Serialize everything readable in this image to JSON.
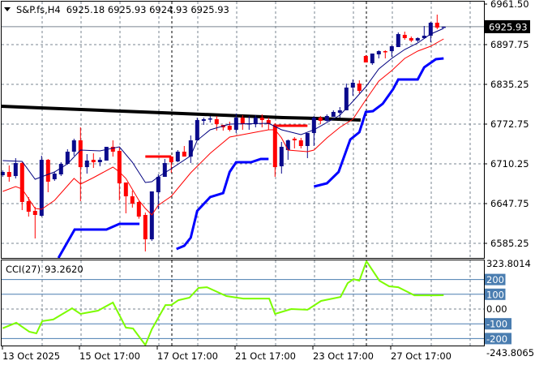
{
  "header": {
    "symbol": "S&P.fs,H4",
    "ohlc": "6925.18 6925.93 6924.93 6925.93"
  },
  "cci_label": {
    "name": "CCI(27)",
    "value": "93.2620"
  },
  "colors": {
    "up": "#0A0A8C",
    "down": "#FF0000",
    "ma_fast": "#000080",
    "ma_slow": "#FF0000",
    "trail": "#0000FF",
    "long_ma": "#000000",
    "cci": "#7CFC00",
    "level": "#4A7DB0",
    "grid": "#7A8591"
  },
  "chart_data": [
    {
      "type": "candlestick",
      "title": "S&P.fs,H4",
      "price_axis_ticks": [
        "6961.50",
        "6897.75",
        "6835.25",
        "6772.75",
        "6710.25",
        "6647.75",
        "6585.25"
      ],
      "ylim": [
        6563,
        6966
      ],
      "current_price": 6925.93,
      "current_price_label": "6925.93",
      "time_labels": [
        "13 Oct 2025",
        "15 Oct 17:00",
        "17 Oct 17:00",
        "21 Oct 17:00",
        "23 Oct 17:00",
        "27 Oct 17:00"
      ],
      "candles_ohlc": [
        [
          6692.4,
          6700.0,
          6689.8,
          6697.5
        ],
        [
          6697.5,
          6707.7,
          6682.2,
          6689.8
        ],
        [
          6691.1,
          6719.2,
          6687.3,
          6711.5
        ],
        [
          6711.5,
          6712.8,
          6637.5,
          6650.3
        ],
        [
          6651.6,
          6657.9,
          6627.3,
          6635.0
        ],
        [
          6636.3,
          6642.6,
          6592.9,
          6629.9
        ],
        [
          6628.6,
          6723.0,
          6627.3,
          6716.6
        ],
        [
          6716.6,
          6717.9,
          6665.6,
          6682.2
        ],
        [
          6686.0,
          6697.5,
          6683.5,
          6694.9
        ],
        [
          6693.7,
          6712.8,
          6691.1,
          6710.2
        ],
        [
          6710.2,
          6733.2,
          6709.0,
          6729.4
        ],
        [
          6729.4,
          6749.8,
          6723.0,
          6747.2
        ],
        [
          6747.2,
          6767.6,
          6651.6,
          6705.1
        ],
        [
          6705.1,
          6725.6,
          6694.9,
          6715.4
        ],
        [
          6716.6,
          6726.8,
          6703.9,
          6712.8
        ],
        [
          6712.8,
          6720.5,
          6706.4,
          6716.6
        ],
        [
          6715.4,
          6737.0,
          6715.4,
          6737.0
        ],
        [
          6737.0,
          6747.2,
          6721.7,
          6729.4
        ],
        [
          6730.7,
          6735.8,
          6652.8,
          6679.6
        ],
        [
          6680.9,
          6680.9,
          6632.4,
          6659.2
        ],
        [
          6659.2,
          6668.2,
          6641.4,
          6647.7
        ],
        [
          6650.3,
          6651.6,
          6624.0,
          6627.3
        ],
        [
          6629.9,
          6633.7,
          6572.5,
          6591.6
        ],
        [
          6591.6,
          6666.9,
          6589.0,
          6666.9
        ],
        [
          6665.6,
          6693.7,
          6638.8,
          6689.8
        ],
        [
          6689.8,
          6717.9,
          6689.8,
          6711.5
        ],
        [
          6721.7,
          6721.7,
          6696.2,
          6712.8
        ],
        [
          6714.1,
          6731.9,
          6712.8,
          6729.4
        ],
        [
          6729.4,
          6738.3,
          6721.7,
          6721.7
        ],
        [
          6721.7,
          6754.9,
          6711.5,
          6747.2
        ],
        [
          6747.2,
          6782.9,
          6747.2,
          6779.1
        ],
        [
          6777.8,
          6782.9,
          6771.5,
          6780.4
        ],
        [
          6780.4,
          6785.5,
          6775.3,
          6781.7
        ],
        [
          6780.4,
          6785.5,
          6762.5,
          6772.7
        ],
        [
          6771.5,
          6771.5,
          6762.5,
          6767.6
        ],
        [
          6770.2,
          6776.6,
          6761.3,
          6763.8
        ],
        [
          6763.8,
          6789.3,
          6758.7,
          6782.9
        ],
        [
          6782.9,
          6786.8,
          6763.8,
          6772.7
        ],
        [
          6772.7,
          6785.5,
          6763.8,
          6774.0
        ],
        [
          6772.7,
          6786.8,
          6767.6,
          6782.9
        ],
        [
          6782.9,
          6788.1,
          6767.6,
          6779.1
        ],
        [
          6779.1,
          6782.9,
          6763.8,
          6772.7
        ],
        [
          6770.2,
          6774.0,
          6689.8,
          6705.1
        ],
        [
          6706.4,
          6744.7,
          6694.9,
          6737.0
        ],
        [
          6731.9,
          6748.5,
          6716.6,
          6747.2
        ],
        [
          6749.8,
          6752.3,
          6734.5,
          6747.2
        ],
        [
          6747.2,
          6751.1,
          6734.5,
          6738.3
        ],
        [
          6738.3,
          6758.7,
          6719.2,
          6758.7
        ],
        [
          6758.7,
          6785.5,
          6738.3,
          6782.9
        ],
        [
          6782.9,
          6785.5,
          6772.7,
          6777.8
        ],
        [
          6777.8,
          6788.1,
          6776.6,
          6785.5
        ],
        [
          6784.2,
          6794.4,
          6784.2,
          6791.9
        ],
        [
          6790.6,
          6799.5,
          6782.9,
          6794.4
        ],
        [
          6794.4,
          6836.5,
          6794.4,
          6830.2
        ],
        [
          6830.2,
          6842.9,
          6817.4,
          6837.8
        ],
        [
          6836.5,
          6841.6,
          6821.2,
          6825.0
        ],
        [
          6879.9,
          6881.1,
          6869.7,
          6869.7
        ],
        [
          6868.4,
          6883.7,
          6865.9,
          6883.7
        ],
        [
          6882.4,
          6888.8,
          6876.1,
          6887.5
        ],
        [
          6887.5,
          6888.8,
          6876.1,
          6886.3
        ],
        [
          6887.5,
          6896.5,
          6878.6,
          6895.2
        ],
        [
          6893.9,
          6916.9,
          6893.9,
          6914.3
        ],
        [
          6913.1,
          6918.2,
          6905.4,
          6908.0
        ],
        [
          6908.0,
          6910.5,
          6901.6,
          6904.1
        ],
        [
          6904.1,
          6909.2,
          6901.6,
          6908.0
        ],
        [
          6908.0,
          6927.1,
          6906.7,
          6911.8
        ],
        [
          6911.8,
          6933.5,
          6901.6,
          6932.2
        ],
        [
          6932.2,
          6944.9,
          6922.0,
          6924.5
        ],
        [
          6925.18,
          6925.93,
          6924.93,
          6925.93
        ]
      ],
      "overlays": {
        "ma_fast": [
          [
            0,
            6715.4
          ],
          [
            3,
            6714.1
          ],
          [
            5,
            6686.0
          ],
          [
            8,
            6697.5
          ],
          [
            10,
            6710.2
          ],
          [
            12,
            6731.9
          ],
          [
            15,
            6730.7
          ],
          [
            18,
            6737.0
          ],
          [
            20,
            6712.8
          ],
          [
            22,
            6680.9
          ],
          [
            23,
            6682.2
          ],
          [
            24,
            6689.8
          ],
          [
            26,
            6702.6
          ],
          [
            29,
            6723.0
          ],
          [
            30,
            6747.2
          ],
          [
            32,
            6763.8
          ],
          [
            35,
            6772.7
          ],
          [
            41,
            6774.0
          ],
          [
            43,
            6763.8
          ],
          [
            46,
            6756.2
          ],
          [
            48,
            6763.8
          ],
          [
            50,
            6775.3
          ],
          [
            52,
            6786.8
          ],
          [
            54,
            6808.5
          ],
          [
            56,
            6831.4
          ],
          [
            58,
            6859.5
          ],
          [
            60,
            6876.1
          ],
          [
            62,
            6890.1
          ],
          [
            64,
            6900.3
          ],
          [
            66,
            6914.3
          ],
          [
            68,
            6923.3
          ]
        ],
        "ma_slow": [
          [
            0,
            6666.9
          ],
          [
            2,
            6674.5
          ],
          [
            3,
            6670.7
          ],
          [
            4,
            6655.4
          ],
          [
            5,
            6640.1
          ],
          [
            6,
            6638.8
          ],
          [
            8,
            6652.8
          ],
          [
            11,
            6687.3
          ],
          [
            12,
            6678.4
          ],
          [
            14,
            6688.6
          ],
          [
            17,
            6705.1
          ],
          [
            18,
            6697.5
          ],
          [
            19,
            6687.3
          ],
          [
            21,
            6652.8
          ],
          [
            22,
            6640.1
          ],
          [
            23,
            6629.9
          ],
          [
            24,
            6645.2
          ],
          [
            26,
            6659.2
          ],
          [
            29,
            6696.2
          ],
          [
            32,
            6726.8
          ],
          [
            35,
            6752.3
          ],
          [
            41,
            6763.8
          ],
          [
            42,
            6763.8
          ],
          [
            43,
            6751.1
          ],
          [
            44,
            6731.9
          ],
          [
            47,
            6729.4
          ],
          [
            48,
            6731.9
          ],
          [
            50,
            6751.1
          ],
          [
            52,
            6767.6
          ],
          [
            54,
            6780.4
          ],
          [
            56,
            6811.0
          ],
          [
            58,
            6840.4
          ],
          [
            60,
            6856.9
          ],
          [
            62,
            6876.1
          ],
          [
            64,
            6887.5
          ],
          [
            66,
            6895.2
          ],
          [
            68,
            6906.7
          ]
        ],
        "trail": [
          [
            [
              8.6,
              6562.3
            ],
            [
              11.1,
              6606.9
            ],
            [
              16,
              6606.9
            ],
            [
              18,
              6615.9
            ],
            [
              21.1,
              6615.9
            ]
          ],
          [
            [
              26.8,
              6576.3
            ],
            [
              28,
              6581.4
            ],
            [
              29,
              6594.2
            ],
            [
              30,
              6636.3
            ],
            [
              32,
              6658.0
            ],
            [
              34,
              6664.3
            ],
            [
              35,
              6697.5
            ],
            [
              36,
              6712.8
            ],
            [
              38.3,
              6712.8
            ],
            [
              39.8,
              6717.9
            ],
            [
              41,
              6717.9
            ]
          ],
          [
            [
              48,
              6674.5
            ],
            [
              50,
              6679.6
            ],
            [
              51.8,
              6697.5
            ],
            [
              53.6,
              6748.5
            ],
            [
              55,
              6760.0
            ],
            [
              56,
              6791.9
            ],
            [
              57.1,
              6793.2
            ],
            [
              58.6,
              6804.6
            ],
            [
              60.2,
              6827.6
            ],
            [
              61,
              6842.9
            ],
            [
              64,
              6842.9
            ],
            [
              65,
              6862.0
            ],
            [
              66.8,
              6874.8
            ],
            [
              68,
              6876.1
            ]
          ]
        ],
        "long_ma": [
          [
            -0.2,
            6800.8
          ],
          [
            5.8,
            6798.3
          ],
          [
            12.1,
            6795.7
          ],
          [
            18.3,
            6793.2
          ],
          [
            24.6,
            6790.6
          ],
          [
            30.8,
            6788.1
          ],
          [
            37.1,
            6785.5
          ],
          [
            43.3,
            6783.0
          ],
          [
            48.3,
            6781.7
          ],
          [
            55.2,
            6779.1
          ]
        ],
        "level_marks": [
          [
            22,
            26,
            6721.7
          ],
          [
            41.7,
            47,
            6770.2
          ]
        ]
      }
    },
    {
      "type": "line",
      "title": "CCI(27)",
      "ylim": [
        -243.8065,
        323.8014
      ],
      "max_label": "323.8014",
      "min_label": "-243.8065",
      "levels": [
        "200",
        "100",
        "-100",
        "-200"
      ],
      "zero_label": "0.00",
      "points": [
        [
          0,
          -130
        ],
        [
          2.1,
          -93
        ],
        [
          4.1,
          -154
        ],
        [
          5.2,
          -165
        ],
        [
          6.1,
          -82
        ],
        [
          7.8,
          -71
        ],
        [
          10.7,
          5
        ],
        [
          12,
          -33
        ],
        [
          14.7,
          -11
        ],
        [
          17,
          44
        ],
        [
          19,
          -126
        ],
        [
          20.1,
          -132
        ],
        [
          22,
          -243.8
        ],
        [
          23,
          -137
        ],
        [
          25.1,
          27
        ],
        [
          26,
          27
        ],
        [
          27.1,
          60
        ],
        [
          28.8,
          77
        ],
        [
          30.2,
          143
        ],
        [
          31.5,
          148
        ],
        [
          34.5,
          88
        ],
        [
          37.1,
          71
        ],
        [
          41.1,
          71
        ],
        [
          42,
          -33
        ],
        [
          44.5,
          0
        ],
        [
          47,
          -5
        ],
        [
          49.1,
          55
        ],
        [
          52.1,
          82
        ],
        [
          53.2,
          176
        ],
        [
          54.1,
          203
        ],
        [
          55,
          192
        ],
        [
          56.1,
          323.8
        ],
        [
          58.1,
          192
        ],
        [
          59.6,
          154
        ],
        [
          61,
          148
        ],
        [
          63.5,
          93
        ],
        [
          66.8,
          93
        ],
        [
          68,
          93.26
        ]
      ]
    }
  ]
}
